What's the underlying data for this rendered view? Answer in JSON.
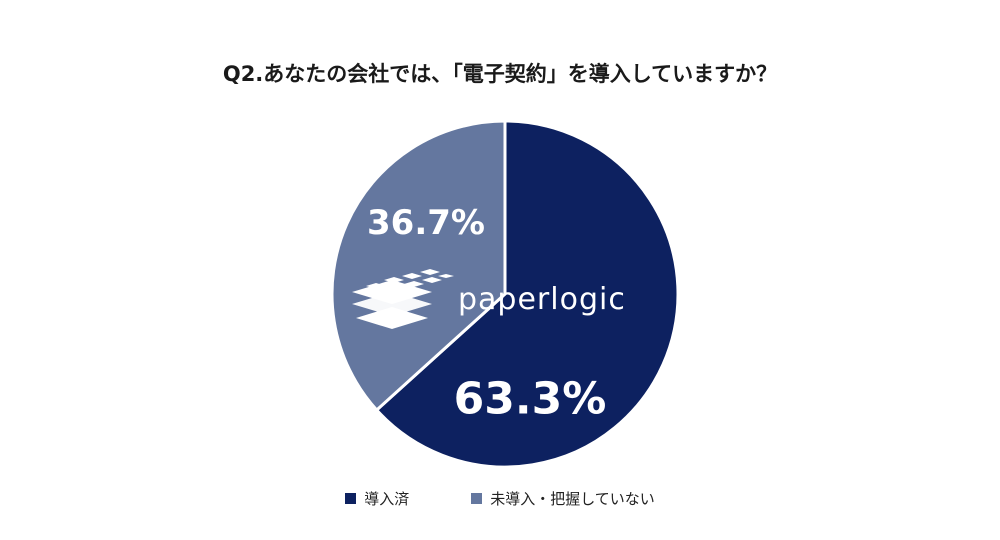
{
  "chart_data": {
    "type": "pie",
    "title": "Q2.あなたの会社では、「電子契約」を導入していますか？",
    "series": [
      {
        "name": "導入済",
        "label": "63.3%",
        "value": 63.3,
        "color": "#0d2160"
      },
      {
        "name": "未導入・把握していない",
        "label": "36.7%",
        "value": 36.7,
        "color": "#64779f"
      }
    ],
    "legend_position": "bottom"
  },
  "watermark": {
    "text": "paperlogic",
    "icon": "paperlogic-logo-icon"
  }
}
